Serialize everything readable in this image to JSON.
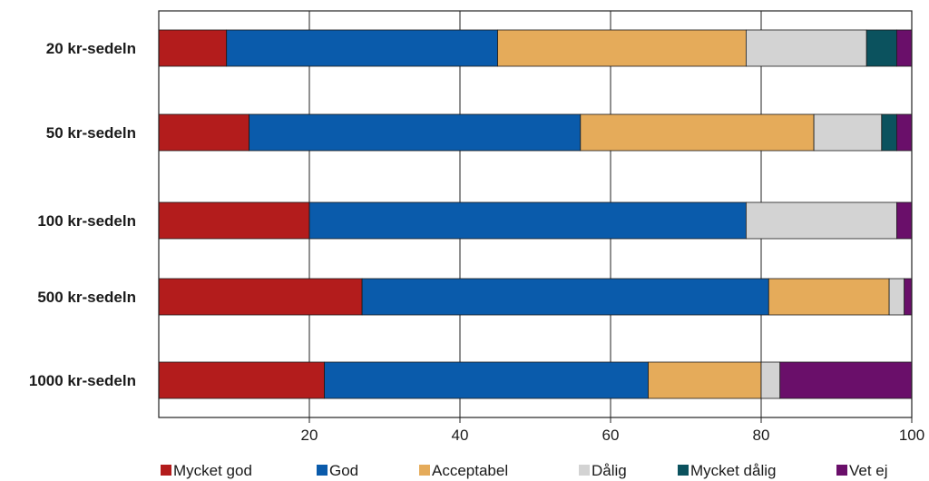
{
  "chart_data": {
    "type": "bar",
    "orientation": "horizontal",
    "stacked": true,
    "title": "",
    "xlabel": "",
    "ylabel": "",
    "xlim": [
      0,
      100
    ],
    "xticks": [
      20,
      40,
      60,
      80,
      100
    ],
    "grid": "vertical",
    "legend_position": "bottom",
    "categories": [
      "20 kr-sedeln",
      "50 kr-sedeln",
      "100 kr-sedeln",
      "500 kr-sedeln",
      "1000 kr-sedeln"
    ],
    "series": [
      {
        "name": "Mycket god",
        "color": "#b31c1c",
        "values": [
          9,
          12,
          20,
          27,
          22
        ]
      },
      {
        "name": "God",
        "color": "#0a5bab",
        "values": [
          36,
          44,
          58,
          54,
          43
        ]
      },
      {
        "name": "Acceptabel",
        "color": "#e5ab5a",
        "values": [
          33,
          31,
          0,
          16,
          15
        ]
      },
      {
        "name": "Dålig",
        "color": "#d3d3d3",
        "values": [
          16,
          9,
          20,
          2,
          2.5
        ]
      },
      {
        "name": "Mycket dålig",
        "color": "#0b525e",
        "values": [
          4,
          2,
          0,
          0,
          0
        ]
      },
      {
        "name": "Vet ej",
        "color": "#6a0f6a",
        "values": [
          2,
          2,
          2,
          1,
          17.5
        ]
      }
    ]
  }
}
